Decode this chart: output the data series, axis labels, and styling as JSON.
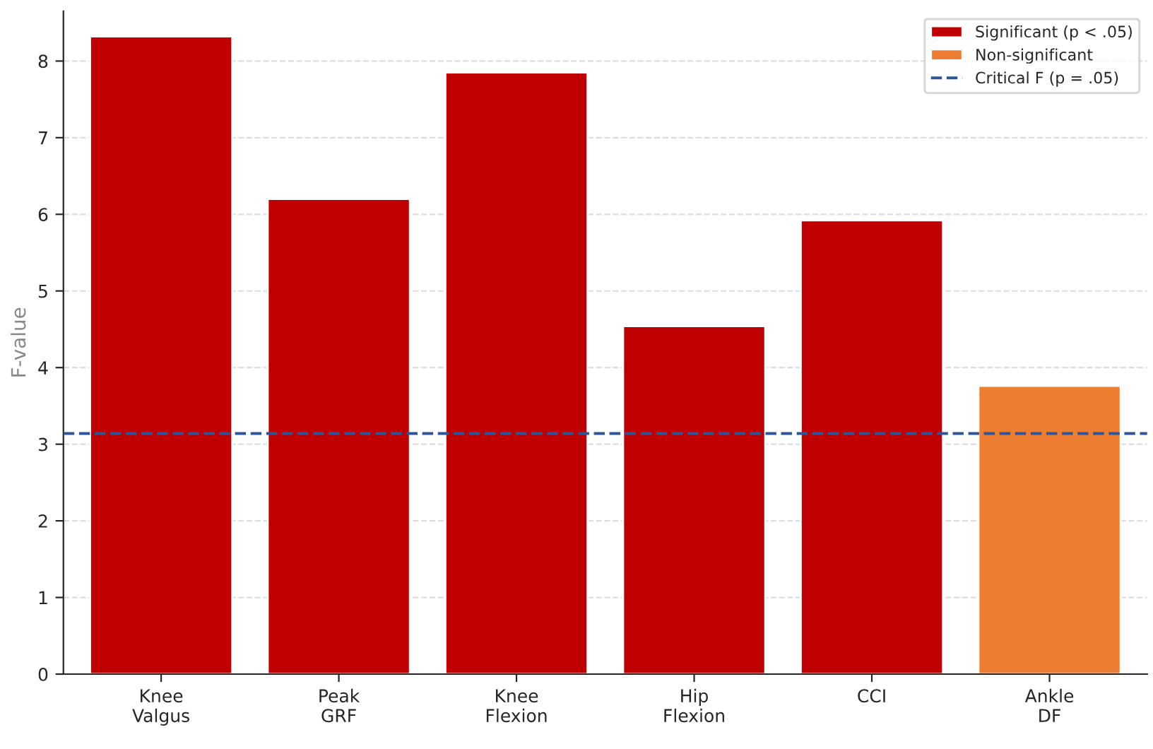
{
  "chart_data": {
    "type": "bar",
    "ylabel": "F-value",
    "categories": [
      "Knee\nValgus",
      "Peak\nGRF",
      "Knee\nFlexion",
      "Hip\nFlexion",
      "CCI",
      "Ankle\nDF"
    ],
    "series": [
      {
        "name": "Significant (p < .05)",
        "color": "#c00000",
        "values": [
          8.32,
          6.2,
          7.85,
          4.54,
          5.92,
          null
        ]
      },
      {
        "name": "Non-significant",
        "color": "#ed7d31",
        "values": [
          null,
          null,
          null,
          null,
          null,
          3.76
        ]
      }
    ],
    "ref_lines": [
      {
        "axis": "y",
        "value": 3.14,
        "label": "Critical F (p = .05)",
        "color": "#2f5597",
        "line_style": "dashed"
      }
    ],
    "ylim": [
      0,
      8.65
    ],
    "yticks": [
      0,
      1,
      2,
      3,
      4,
      5,
      6,
      7,
      8
    ],
    "grid": "y",
    "legend": "top right"
  }
}
